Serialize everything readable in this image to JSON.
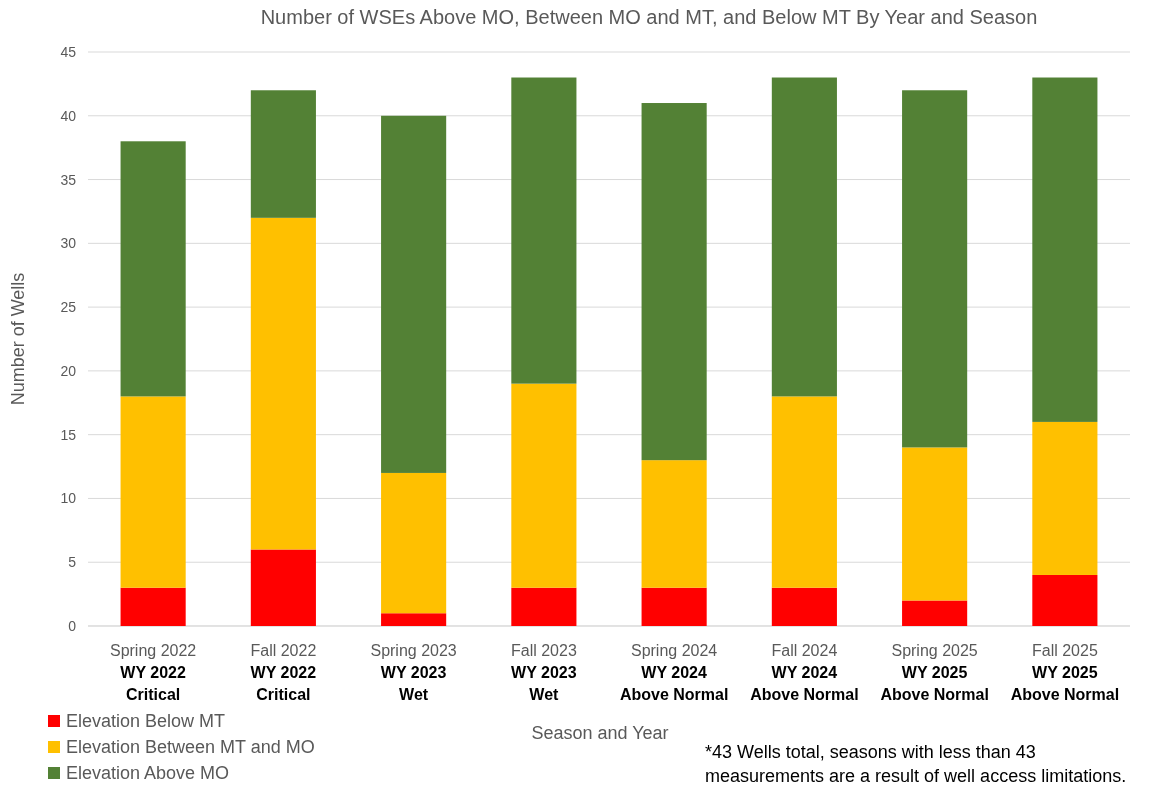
{
  "chart_data": {
    "type": "bar",
    "title": "Number of WSEs Above MO, Between MO and MT, and Below MT By Year and Season",
    "xlabel": "Season and Year",
    "ylabel": "Number of Wells",
    "categories": [
      "Spring 2022\nWY 2022\nCritical",
      "Fall 2022\nWY 2022\nCritical",
      "Spring 2023\nWY 2023\nWet",
      "Fall 2023\nWY 2023\nWet",
      "Spring 2024\nWY 2024\nAbove Normal",
      "Fall 2024\nWY 2024\nAbove Normal",
      "Spring 2025\nWY 2025\nAbove Normal",
      "Fall 2025\nWY 2025\nAbove Normal"
    ],
    "series": [
      {
        "name": "Elevation Below MT",
        "color": "#ff0000",
        "values": [
          3,
          6,
          1,
          3,
          3,
          3,
          2,
          4
        ]
      },
      {
        "name": "Elevation Between MT and MO",
        "color": "#ffc000",
        "values": [
          15,
          26,
          11,
          16,
          10,
          15,
          12,
          12
        ]
      },
      {
        "name": "Elevation Above MO",
        "color": "#538135",
        "values": [
          20,
          10,
          28,
          24,
          28,
          25,
          28,
          27
        ]
      }
    ],
    "stacked": true,
    "ylim": [
      0,
      45
    ],
    "yticks": [
      0,
      5,
      10,
      15,
      20,
      25,
      30,
      35,
      40,
      45
    ],
    "grid": "y",
    "legend": "bottom left",
    "annotations": [
      "*43 Wells total, seasons with less than 43\nmeasurements are a result of well access limitations."
    ]
  }
}
